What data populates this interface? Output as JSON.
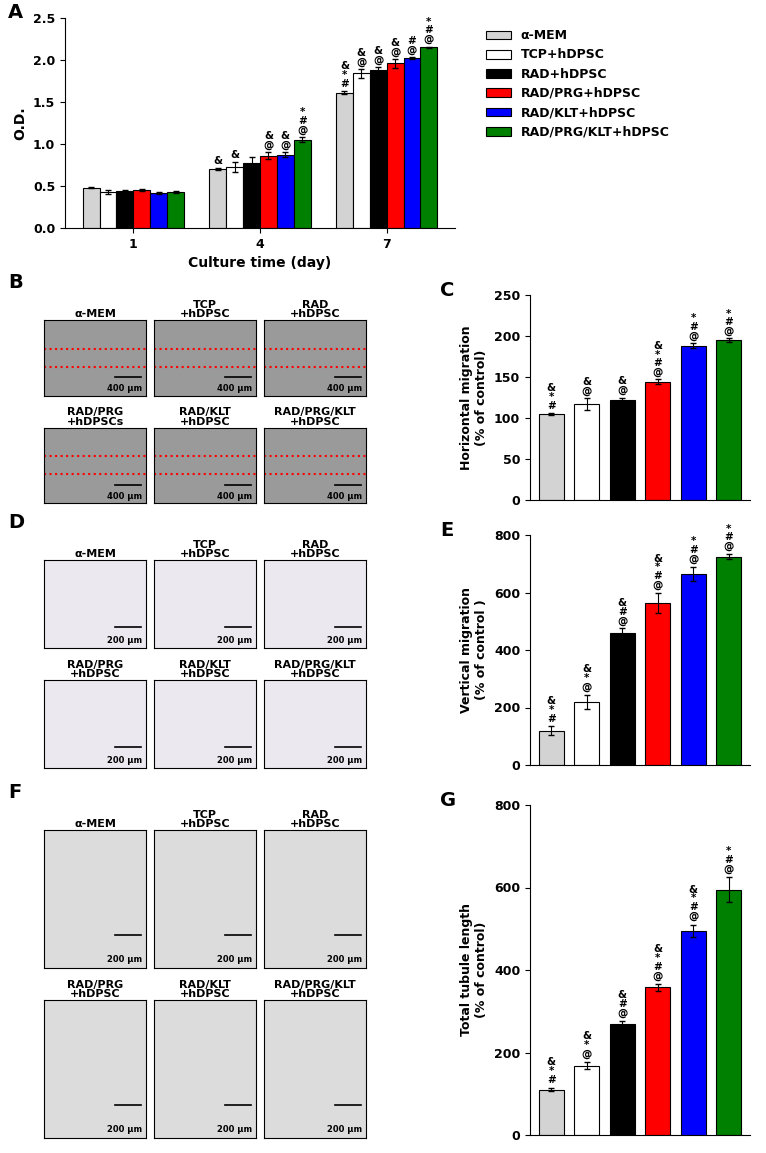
{
  "chart_data": [
    {
      "type": "bar",
      "panel_label": "A",
      "x_label": "Culture time (day)",
      "y_label": "O.D.",
      "categories": [
        "1",
        "4",
        "7"
      ],
      "ylim": [
        0,
        2.5
      ],
      "yticks": [
        {
          "value": 0,
          "label": "0.0"
        },
        0.5,
        {
          "value": 1,
          "label": "1.0"
        },
        1.5,
        {
          "value": 2,
          "label": "2.0"
        },
        2.5
      ],
      "legend": "upper left",
      "series": [
        {
          "name": "α-MEM",
          "color": "#d3d3d3",
          "values": [
            0.48,
            0.7,
            1.61
          ],
          "errors": [
            0.005,
            0.01,
            0.02
          ],
          "significance": [
            null,
            "&",
            "&\n*\n#"
          ]
        },
        {
          "name": "TCP+hDPSC",
          "color": "#ffffff",
          "values": [
            0.43,
            0.73,
            1.84
          ],
          "errors": [
            0.02,
            0.06,
            0.05
          ],
          "significance": [
            null,
            "&",
            "&\n@"
          ]
        },
        {
          "name": "RAD+hDPSC",
          "color": "#000000",
          "values": [
            0.44,
            0.77,
            1.88
          ],
          "errors": [
            0.01,
            0.07,
            0.04
          ],
          "significance": [
            null,
            null,
            "&\n@"
          ]
        },
        {
          "name": "RAD/PRG+hDPSC",
          "color": "#ff0000",
          "values": [
            0.45,
            0.86,
            1.96
          ],
          "errors": [
            0.01,
            0.04,
            0.05
          ],
          "significance": [
            null,
            "&\n@",
            "&\n@"
          ]
        },
        {
          "name": "RAD/KLT+hDPSC",
          "color": "#0000ff",
          "values": [
            0.42,
            0.87,
            2.02
          ],
          "errors": [
            0.01,
            0.03,
            0.01
          ],
          "significance": [
            null,
            "&\n@",
            "#\n@"
          ]
        },
        {
          "name": "RAD/PRG/KLT+hDPSC",
          "color": "#008000",
          "values": [
            0.43,
            1.05,
            2.15
          ],
          "errors": [
            0.01,
            0.03,
            0.01
          ],
          "significance": [
            null,
            "*\n#\n@",
            "*\n#\n@"
          ]
        }
      ]
    },
    {
      "type": "bar",
      "panel_label": "C",
      "y_label": "Horizontal migration\n(% of control)",
      "categories": [
        null,
        null,
        null,
        null,
        null,
        null
      ],
      "tick_labels": "y",
      "colors": [
        "#d3d3d3",
        "#ffffff",
        "#000000",
        "#ff0000",
        "#0000ff",
        "#008000"
      ],
      "values": [
        105,
        117,
        122,
        144,
        188,
        195
      ],
      "errors": [
        1,
        7,
        3,
        3,
        3,
        2
      ],
      "significance": [
        "&\n*\n#",
        "&\n@",
        "&\n@",
        "&\n*\n#\n@",
        "*\n#\n@",
        "*\n#\n@"
      ],
      "ylim": [
        0,
        250
      ],
      "yticks": [
        0,
        50,
        100,
        150,
        200,
        250
      ]
    },
    {
      "type": "bar",
      "panel_label": "E",
      "y_label": "Vertical migration\n(% of control )",
      "categories": [
        null,
        null,
        null,
        null,
        null,
        null
      ],
      "tick_labels": "y",
      "colors": [
        "#d3d3d3",
        "#ffffff",
        "#000000",
        "#ff0000",
        "#0000ff",
        "#008000"
      ],
      "values": [
        120,
        220,
        460,
        565,
        665,
        725
      ],
      "errors": [
        15,
        25,
        15,
        35,
        25,
        10
      ],
      "significance": [
        "&\n*\n#",
        "&\n*\n@",
        "&\n#\n@",
        "&\n*\n#\n@",
        "*\n#\n@",
        "*\n#\n@"
      ],
      "ylim": [
        0,
        800
      ],
      "yticks": [
        0,
        200,
        400,
        600,
        800
      ]
    },
    {
      "type": "bar",
      "panel_label": "G",
      "y_label": "Total tubule length\n(% of control)",
      "categories": [
        null,
        null,
        null,
        null,
        null,
        null
      ],
      "tick_labels": "y",
      "colors": [
        "#d3d3d3",
        "#ffffff",
        "#000000",
        "#ff0000",
        "#0000ff",
        "#008000"
      ],
      "values": [
        110,
        168,
        268,
        358,
        495,
        595
      ],
      "errors": [
        3,
        8,
        8,
        8,
        15,
        30
      ],
      "significance": [
        "&\n*\n#",
        "&\n*\n@",
        "&\n#\n@",
        "&\n*\n#\n@",
        "&\n*\n#\n@",
        "*\n#\n@"
      ],
      "ylim": [
        0,
        800
      ],
      "yticks": [
        0,
        200,
        400,
        600,
        800
      ]
    }
  ],
  "image_panels": [
    {
      "panel_label": "B",
      "scale_bar": "400 µm",
      "titles": [
        "α-MEM",
        "TCP\n+hDPSC",
        "RAD\n+hDPSC",
        "RAD/PRG\n+hDPSCs",
        "RAD/KLT\n+hDPSC",
        "RAD/PRG/KLT\n+hDPSC"
      ]
    },
    {
      "panel_label": "D",
      "scale_bar": "200 µm",
      "titles": [
        "α-MEM",
        "TCP\n+hDPSC",
        "RAD\n+hDPSC",
        "RAD/PRG\n+hDPSC",
        "RAD/KLT\n+hDPSC",
        "RAD/PRG/KLT\n+hDPSC"
      ]
    },
    {
      "panel_label": "F",
      "scale_bar": "200 µm",
      "titles": [
        "α-MEM",
        "TCP\n+hDPSC",
        "RAD\n+hDPSC",
        "RAD/PRG\n+hDPSC",
        "RAD/KLT\n+hDPSC",
        "RAD/PRG/KLT\n+hDPSC"
      ]
    }
  ]
}
